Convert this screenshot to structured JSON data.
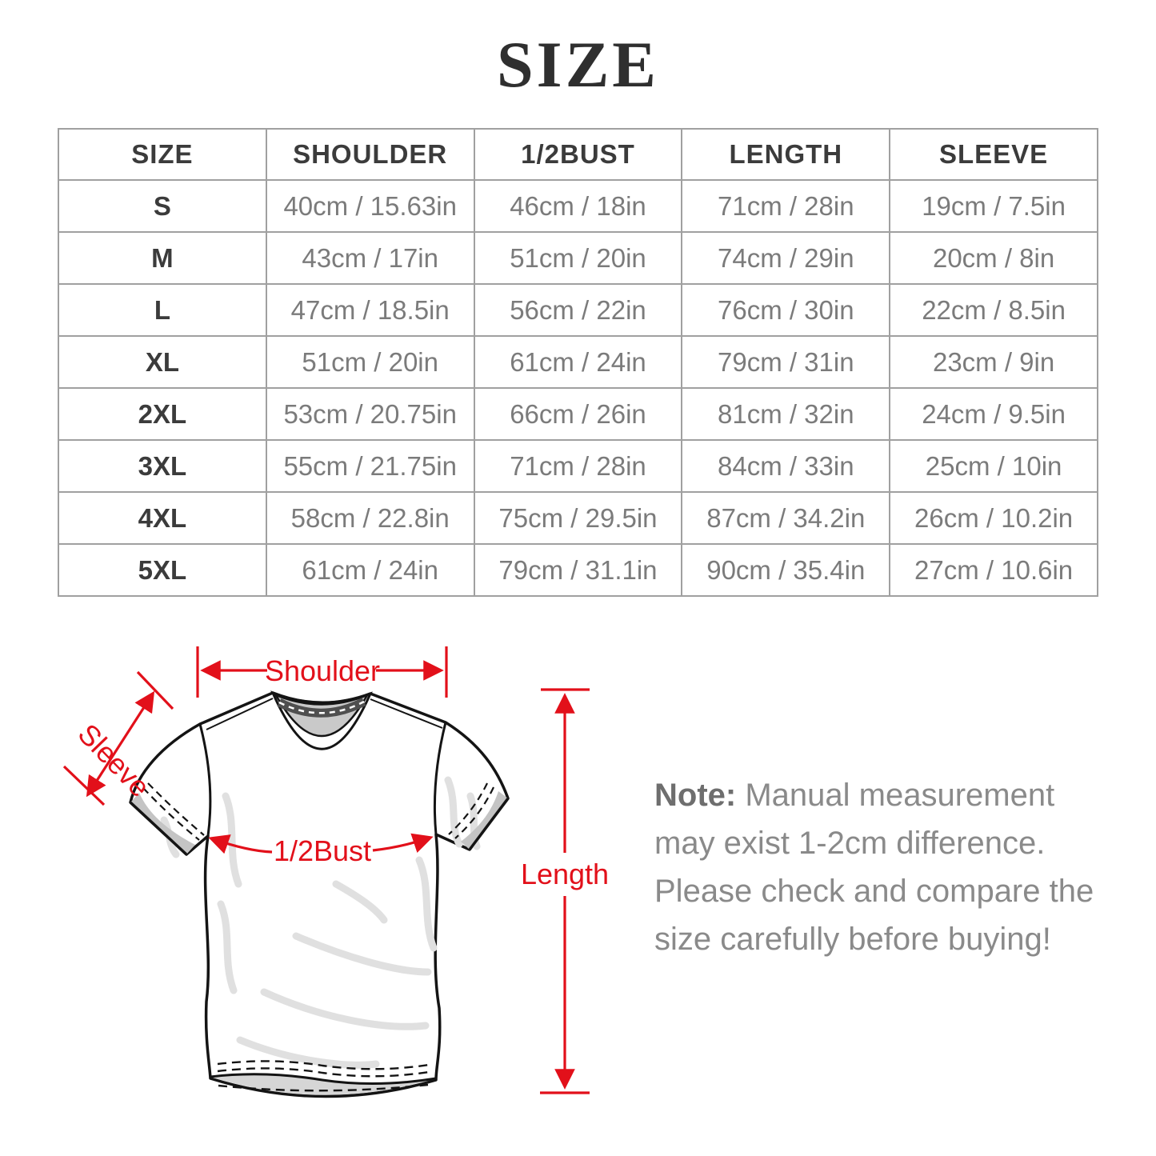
{
  "title": "SIZE",
  "table": {
    "headers": [
      "SIZE",
      "SHOULDER",
      "1/2BUST",
      "LENGTH",
      "SLEEVE"
    ],
    "rows": [
      [
        "S",
        "40cm / 15.63in",
        "46cm / 18in",
        "71cm / 28in",
        "19cm / 7.5in"
      ],
      [
        "M",
        "43cm / 17in",
        "51cm / 20in",
        "74cm / 29in",
        "20cm / 8in"
      ],
      [
        "L",
        "47cm / 18.5in",
        "56cm / 22in",
        "76cm / 30in",
        "22cm / 8.5in"
      ],
      [
        "XL",
        "51cm / 20in",
        "61cm / 24in",
        "79cm / 31in",
        "23cm / 9in"
      ],
      [
        "2XL",
        "53cm / 20.75in",
        "66cm / 26in",
        "81cm / 32in",
        "24cm / 9.5in"
      ],
      [
        "3XL",
        "55cm / 21.75in",
        "71cm / 28in",
        "84cm / 33in",
        "25cm / 10in"
      ],
      [
        "4XL",
        "58cm / 22.8in",
        "75cm / 29.5in",
        "87cm / 34.2in",
        "26cm / 10.2in"
      ],
      [
        "5XL",
        "61cm / 24in",
        "79cm / 31.1in",
        "90cm / 35.4in",
        "27cm / 10.6in"
      ]
    ]
  },
  "diagram": {
    "labels": {
      "shoulder": "Shoulder",
      "sleeve": "Sleeve",
      "bust": "1/2Bust",
      "length": "Length"
    },
    "accent_color": "#e2101a"
  },
  "note": {
    "label": "Note:",
    "body": " Manual measurement may exist 1-2cm difference. Please check and compare the size carefully before buying!"
  },
  "colors": {
    "title_text": "#2f2f2f",
    "table_border": "#a0a0a0",
    "header_text": "#3b3b3b",
    "value_text": "#7b7b7b",
    "note_text": "#8a8a8a"
  }
}
